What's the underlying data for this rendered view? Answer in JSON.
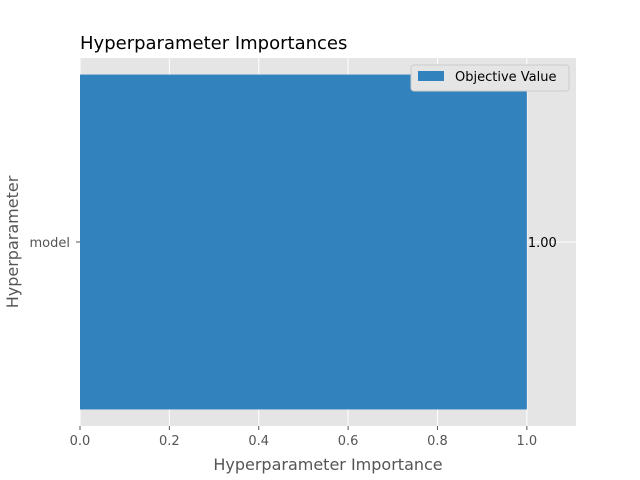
{
  "chart_data": {
    "type": "bar",
    "orientation": "horizontal",
    "title": "Hyperparameter Importances",
    "xlabel": "Hyperparameter Importance",
    "ylabel": "Hyperparameter",
    "categories": [
      "model"
    ],
    "series": [
      {
        "name": "Objective Value",
        "values": [
          1.0
        ],
        "data_labels": [
          "1.00"
        ],
        "color": "#3182bd"
      }
    ],
    "xlim": [
      0,
      1.11
    ],
    "xticks": [
      0.0,
      0.2,
      0.4,
      0.6,
      0.8,
      1.0
    ],
    "xtick_labels": [
      "0.0",
      "0.2",
      "0.4",
      "0.6",
      "0.8",
      "1.0"
    ],
    "grid": true,
    "legend_position": "top-right",
    "style": {
      "plot_background": "#e5e5e5",
      "grid_color": "#ffffff",
      "legend_background": "#e5e5e5",
      "legend_border": "#cccccc"
    }
  }
}
